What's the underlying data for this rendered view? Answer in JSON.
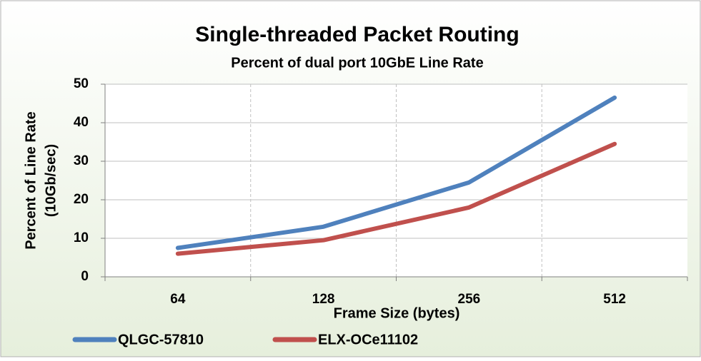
{
  "chart_data": {
    "type": "line",
    "title": "Single-threaded Packet Routing",
    "subtitle": "Percent of dual port 10GbE Line Rate",
    "xlabel": "Frame Size (bytes)",
    "ylabel": [
      "Percent of Line Rate",
      "(10Gb/sec)"
    ],
    "categories": [
      "64",
      "128",
      "256",
      "512"
    ],
    "series": [
      {
        "name": "QLGC-57810",
        "color": "#4f81bd",
        "values": [
          7.5,
          13,
          24.5,
          46.5
        ]
      },
      {
        "name": "ELX-OCe11102",
        "color": "#c0504d",
        "values": [
          6,
          9.5,
          18,
          34.5
        ]
      }
    ],
    "ylim": [
      0,
      50
    ],
    "yticks": [
      0,
      10,
      20,
      30,
      40,
      50
    ],
    "grid": true,
    "legend": "bottom"
  }
}
